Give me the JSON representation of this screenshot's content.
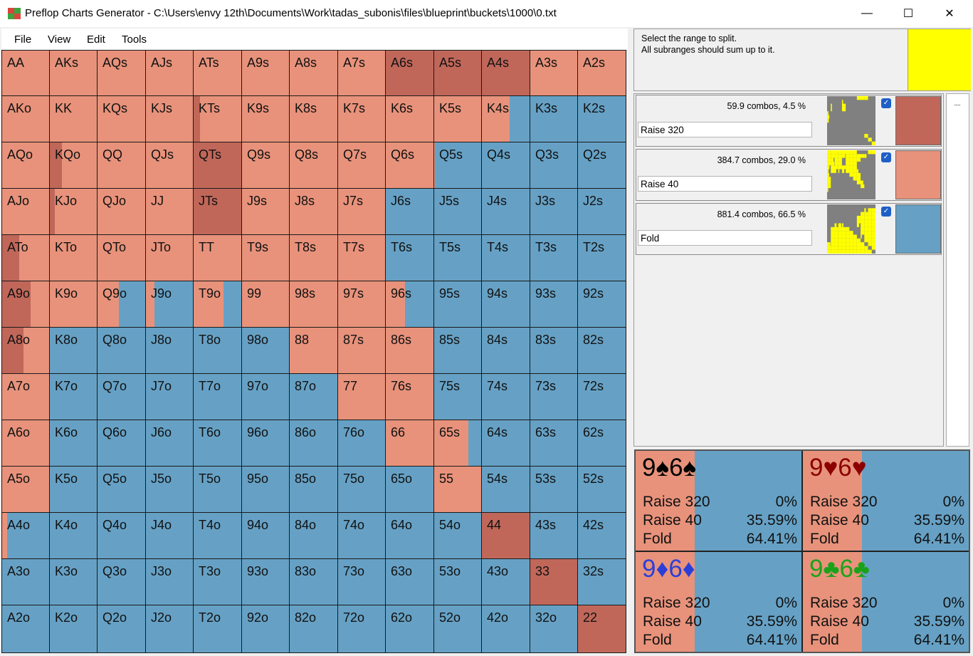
{
  "window": {
    "title": "Preflop Charts Generator - C:\\Users\\envy 12th\\Documents\\Work\\tadas_subonis\\files\\blueprint\\buckets\\1000\\0.txt",
    "minimize_glyph": "—",
    "maximize_glyph": "☐",
    "close_glyph": "✕"
  },
  "menu": [
    {
      "id": "file",
      "label": "File"
    },
    {
      "id": "view",
      "label": "View"
    },
    {
      "id": "edit",
      "label": "Edit"
    },
    {
      "id": "tools",
      "label": "Tools"
    }
  ],
  "colors": {
    "raise320": "#c0675a",
    "raise40": "#e8927b",
    "fold": "#66a1c5",
    "target": "#ffff00",
    "thumb_bg": "#808080"
  },
  "grid": {
    "ranks": [
      "A",
      "K",
      "Q",
      "J",
      "T",
      "9",
      "8",
      "7",
      "6",
      "5",
      "4",
      "3",
      "2"
    ],
    "cells": [
      [
        "AA",
        "AKs",
        "AQs",
        "AJs",
        "ATs",
        "A9s",
        "A8s",
        "A7s",
        "A6s",
        "A5s",
        "A4s",
        "A3s",
        "A2s"
      ],
      [
        "AKo",
        "KK",
        "KQs",
        "KJs",
        "KTs",
        "K9s",
        "K8s",
        "K7s",
        "K6s",
        "K5s",
        "K4s",
        "K3s",
        "K2s"
      ],
      [
        "AQo",
        "KQo",
        "QQ",
        "QJs",
        "QTs",
        "Q9s",
        "Q8s",
        "Q7s",
        "Q6s",
        "Q5s",
        "Q4s",
        "Q3s",
        "Q2s"
      ],
      [
        "AJo",
        "KJo",
        "QJo",
        "JJ",
        "JTs",
        "J9s",
        "J8s",
        "J7s",
        "J6s",
        "J5s",
        "J4s",
        "J3s",
        "J2s"
      ],
      [
        "ATo",
        "KTo",
        "QTo",
        "JTo",
        "TT",
        "T9s",
        "T8s",
        "T7s",
        "T6s",
        "T5s",
        "T4s",
        "T3s",
        "T2s"
      ],
      [
        "A9o",
        "K9o",
        "Q9o",
        "J9o",
        "T9o",
        "99",
        "98s",
        "97s",
        "96s",
        "95s",
        "94s",
        "93s",
        "92s"
      ],
      [
        "A8o",
        "K8o",
        "Q8o",
        "J8o",
        "T8o",
        "98o",
        "88",
        "87s",
        "86s",
        "85s",
        "84s",
        "83s",
        "82s"
      ],
      [
        "A7o",
        "K7o",
        "Q7o",
        "J7o",
        "T7o",
        "97o",
        "87o",
        "77",
        "76s",
        "75s",
        "74s",
        "73s",
        "72s"
      ],
      [
        "A6o",
        "K6o",
        "Q6o",
        "J6o",
        "T6o",
        "96o",
        "86o",
        "76o",
        "66",
        "65s",
        "64s",
        "63s",
        "62s"
      ],
      [
        "A5o",
        "K5o",
        "Q5o",
        "J5o",
        "T5o",
        "95o",
        "85o",
        "75o",
        "65o",
        "55",
        "54s",
        "53s",
        "52s"
      ],
      [
        "A4o",
        "K4o",
        "Q4o",
        "J4o",
        "T4o",
        "94o",
        "84o",
        "74o",
        "64o",
        "54o",
        "44",
        "43s",
        "42s"
      ],
      [
        "A3o",
        "K3o",
        "Q3o",
        "J3o",
        "T3o",
        "93o",
        "83o",
        "73o",
        "63o",
        "53o",
        "43o",
        "33",
        "32s"
      ],
      [
        "A2o",
        "K2o",
        "Q2o",
        "J2o",
        "T2o",
        "92o",
        "82o",
        "72o",
        "62o",
        "52o",
        "42o",
        "32o",
        "22"
      ]
    ],
    "mixed_frequencies": {
      "A6s": [
        1,
        0
      ],
      "A5s": [
        1,
        0
      ],
      "A4s": [
        1,
        0
      ],
      "K4s": [
        0,
        0.58
      ],
      "KTs": [
        0.14,
        0.86
      ],
      "QTs": [
        1,
        0
      ],
      "Q5s": [
        0,
        0.02
      ],
      "KQo": [
        0.26,
        0.74
      ],
      "JTs": [
        1,
        0
      ],
      "KJo": [
        0.1,
        0.9
      ],
      "ATo": [
        0.36,
        0.64
      ],
      "A9o": [
        0.6,
        0.4
      ],
      "Q9o": [
        0,
        0.45
      ],
      "J9o": [
        0,
        0.18
      ],
      "T9o": [
        0,
        0.62
      ],
      "96s": [
        0,
        0.4
      ],
      "A8o": [
        0.45,
        0.55
      ],
      "65s": [
        0,
        0.72
      ],
      "44": [
        1,
        0
      ],
      "A4o": [
        0,
        0.1
      ],
      "33": [
        1,
        0
      ],
      "22": [
        1,
        0
      ]
    },
    "raise40_hands": [
      "AA",
      "AKs",
      "AQs",
      "AJs",
      "ATs",
      "A9s",
      "A8s",
      "A7s",
      "A3s",
      "A2s",
      "AKo",
      "KK",
      "KQs",
      "KJs",
      "K9s",
      "K8s",
      "K7s",
      "K6s",
      "K5s",
      "AQo",
      "QQ",
      "QJs",
      "Q9s",
      "Q8s",
      "Q7s",
      "Q6s",
      "AJo",
      "QJo",
      "JJ",
      "J9s",
      "J8s",
      "J7s",
      "KTo",
      "QTo",
      "JTo",
      "TT",
      "T9s",
      "T8s",
      "T7s",
      "K9o",
      "99",
      "98s",
      "97s",
      "88",
      "87s",
      "86s",
      "A7o",
      "77",
      "76s",
      "A6o",
      "66",
      "A5o",
      "55"
    ]
  },
  "split_panel": {
    "target_text_1": "Select the range to split.",
    "target_text_2": "All subranges should sum up to it."
  },
  "subranges": [
    {
      "name": "Raise 320",
      "combos": "59.9 combos, 4.5 %",
      "color": "#c0675a",
      "checked": true
    },
    {
      "name": "Raise 40",
      "combos": "384.7 combos, 29.0 %",
      "color": "#e8927b",
      "checked": true
    },
    {
      "name": "Fold",
      "combos": "881.4 combos, 66.5 %",
      "color": "#66a1c5",
      "checked": true
    }
  ],
  "scrollbar": {
    "grip": "....."
  },
  "combos": [
    {
      "rank1": "9",
      "suit1": "♠",
      "rank2": "6",
      "suit2": "♠",
      "suit_color": "#000000",
      "freqs": [
        0,
        0.3559,
        0.6441
      ],
      "rows": [
        {
          "name": "Raise 320",
          "pct": "0%"
        },
        {
          "name": "Raise 40",
          "pct": "35.59%"
        },
        {
          "name": "Fold",
          "pct": "64.41%"
        }
      ]
    },
    {
      "rank1": "9",
      "suit1": "♥",
      "rank2": "6",
      "suit2": "♥",
      "suit_color": "#8b0000",
      "freqs": [
        0,
        0.3559,
        0.6441
      ],
      "rows": [
        {
          "name": "Raise 320",
          "pct": "0%"
        },
        {
          "name": "Raise 40",
          "pct": "35.59%"
        },
        {
          "name": "Fold",
          "pct": "64.41%"
        }
      ]
    },
    {
      "rank1": "9",
      "suit1": "♦",
      "rank2": "6",
      "suit2": "♦",
      "suit_color": "#2b3fd8",
      "freqs": [
        0,
        0.3559,
        0.6441
      ],
      "rows": [
        {
          "name": "Raise 320",
          "pct": "0%"
        },
        {
          "name": "Raise 40",
          "pct": "35.59%"
        },
        {
          "name": "Fold",
          "pct": "64.41%"
        }
      ]
    },
    {
      "rank1": "9",
      "suit1": "♣",
      "rank2": "6",
      "suit2": "♣",
      "suit_color": "#1aa31a",
      "freqs": [
        0,
        0.3559,
        0.6441
      ],
      "rows": [
        {
          "name": "Raise 320",
          "pct": "0%"
        },
        {
          "name": "Raise 40",
          "pct": "35.59%"
        },
        {
          "name": "Fold",
          "pct": "64.41%"
        }
      ]
    }
  ]
}
